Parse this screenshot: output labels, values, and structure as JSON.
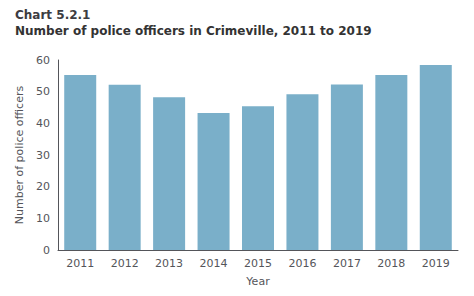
{
  "chart_data": {
    "type": "bar",
    "title": "Chart 5.2.1",
    "subtitle": "Number of police officers in Crimeville, 2011 to 2019",
    "categories": [
      "2011",
      "2012",
      "2013",
      "2014",
      "2015",
      "2016",
      "2017",
      "2018",
      "2019"
    ],
    "values": [
      55.3,
      52.2,
      48.2,
      43.3,
      45.4,
      49.2,
      52.3,
      55.3,
      58.4
    ],
    "color": "#7aafc9",
    "xlabel": "Year",
    "ylabel": "Number of police officers",
    "ylim": [
      0,
      60
    ],
    "yticks": [
      0,
      10,
      20,
      30,
      40,
      50,
      60
    ],
    "grid": false
  }
}
